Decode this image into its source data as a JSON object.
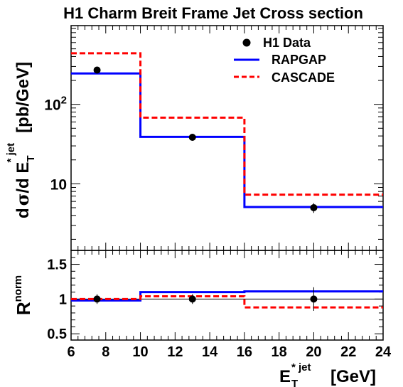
{
  "chart_data": [
    {
      "panel": "top",
      "type": "line",
      "title": "H1 Charm Breit Frame Jet Cross section",
      "ylabel": {
        "d1": "d",
        "sigma": "σ",
        "slash": "/d E",
        "sub": "T",
        "sup": "* jet",
        "unit": "[pb/GeV]"
      },
      "yscale": "log",
      "xlim": [
        6,
        24
      ],
      "ylim": [
        1.45,
        980
      ],
      "y_tick_labels": [
        {
          "value": 10,
          "base": "10",
          "exp": ""
        },
        {
          "value": 100,
          "base": "10",
          "exp": "2"
        }
      ],
      "legend_position": "top-right",
      "series": [
        {
          "name": "H1 Data",
          "kind": "points",
          "color": "#000000",
          "x": [
            7.5,
            13,
            20
          ],
          "y": [
            270,
            38.5,
            5.0
          ],
          "err": [
            [
              250,
              290
            ],
            [
              36.5,
              40.5
            ],
            [
              4.3,
              5.7
            ]
          ]
        },
        {
          "name": "RAPGAP",
          "kind": "histogram",
          "color": "#0000ff",
          "dash": "solid",
          "edges": [
            6,
            10,
            16,
            24
          ],
          "values": [
            245,
            39,
            5.1
          ]
        },
        {
          "name": "CASCADE",
          "kind": "histogram",
          "color": "#ff0000",
          "dash": "dashed",
          "edges": [
            6,
            10,
            16,
            24
          ],
          "values": [
            440,
            68,
            7.3
          ]
        }
      ]
    },
    {
      "panel": "bottom",
      "type": "line",
      "ylabel": {
        "base": "R",
        "sup": "norm"
      },
      "xlabel": {
        "main": "E",
        "sub": "T",
        "sup": "* jet",
        "unit": "[GeV]"
      },
      "xlim": [
        6,
        24
      ],
      "ylim": [
        0.41,
        1.7
      ],
      "x_ticks": [
        "6",
        "8",
        "10",
        "12",
        "14",
        "16",
        "18",
        "20",
        "22",
        "24"
      ],
      "y_ticks": [
        "0.5",
        "1",
        "1.5"
      ],
      "reference_line": 1,
      "series": [
        {
          "name": "H1 Data",
          "kind": "points",
          "color": "#000000",
          "x": [
            7.5,
            13,
            20
          ],
          "y": [
            1.0,
            1.0,
            1.0
          ],
          "err": [
            [
              0.93,
              1.07
            ],
            [
              0.93,
              1.07
            ],
            [
              0.83,
              1.17
            ]
          ]
        },
        {
          "name": "RAPGAP",
          "kind": "histogram",
          "color": "#0000ff",
          "dash": "solid",
          "edges": [
            6,
            10,
            16,
            24
          ],
          "values": [
            0.98,
            1.1,
            1.11
          ]
        },
        {
          "name": "CASCADE",
          "kind": "histogram",
          "color": "#ff0000",
          "dash": "dashed",
          "edges": [
            6,
            10,
            16,
            24
          ],
          "values": [
            1.0,
            1.04,
            0.88
          ]
        }
      ]
    }
  ]
}
